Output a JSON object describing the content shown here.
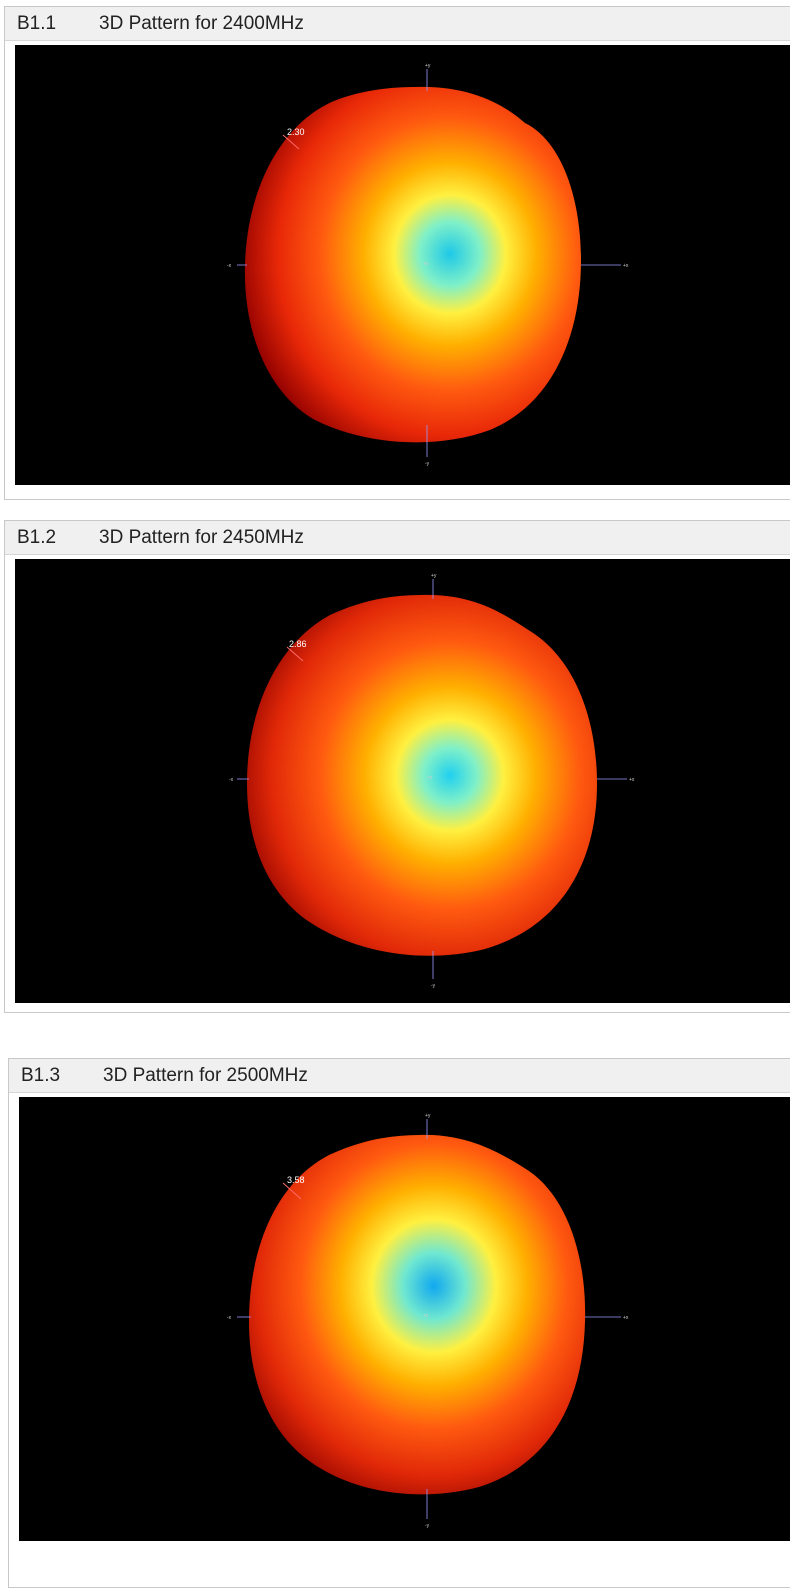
{
  "sections": [
    {
      "number": "B1.1",
      "title": "3D Pattern for 2400MHz",
      "peak_value": "2.30",
      "axis": {
        "pos_y": "+y",
        "neg_y": "-y",
        "pos_x": "+x",
        "neg_x": "-x",
        "center": "+z"
      }
    },
    {
      "number": "B1.2",
      "title": "3D Pattern for 2450MHz",
      "peak_value": "2.86",
      "axis": {
        "pos_y": "+y",
        "neg_y": "-y",
        "pos_x": "+x",
        "neg_x": "-x",
        "center": "+z"
      }
    },
    {
      "number": "B1.3",
      "title": "3D Pattern for 2500MHz",
      "peak_value": "3.58",
      "axis": {
        "pos_y": "+y",
        "neg_y": "-y",
        "pos_x": "+x",
        "neg_x": "-x",
        "center": "+z"
      }
    }
  ],
  "colors": {
    "plot_background": "#000000",
    "header_background": "#f0f0f0",
    "pattern_max": "#c00000",
    "pattern_mid": "#ffd200",
    "pattern_min": "#20d0e0"
  }
}
